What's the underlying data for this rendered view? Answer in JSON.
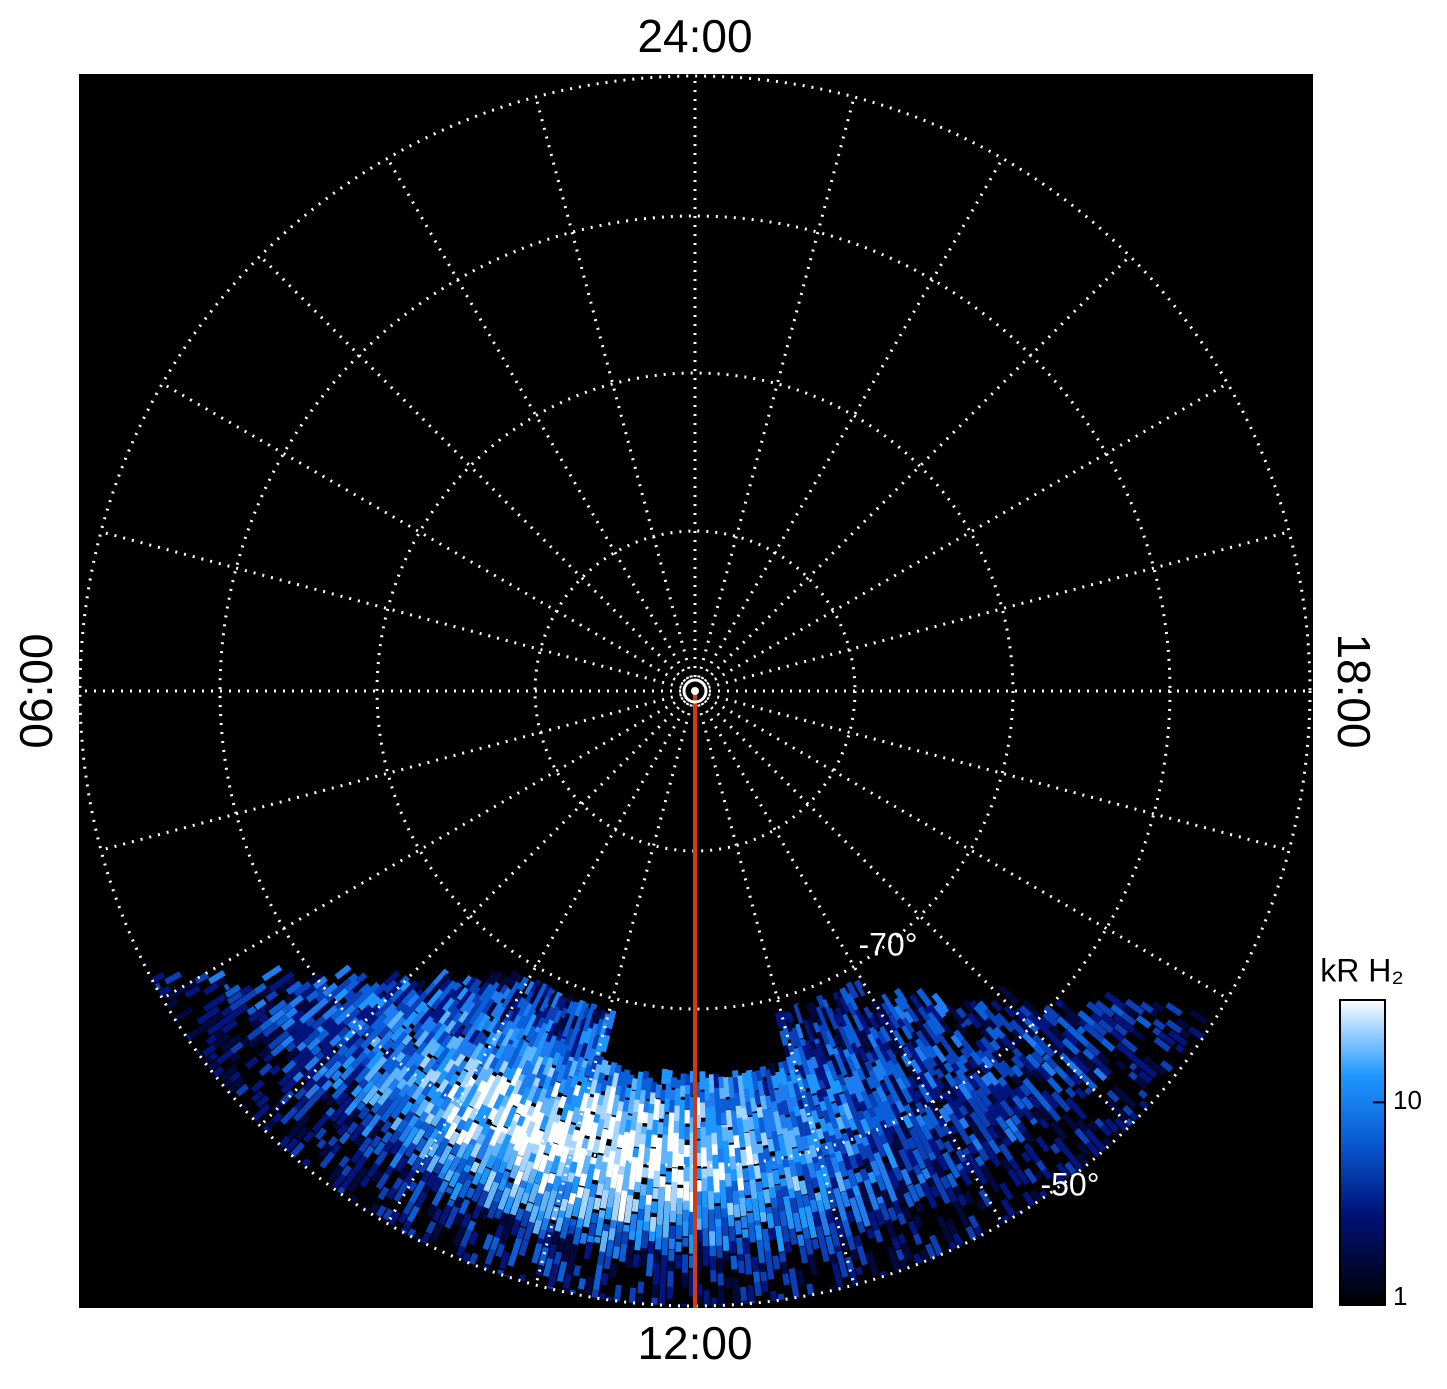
{
  "local_time_labels": {
    "top": "24:00",
    "bottom": "12:00",
    "left": "06:00",
    "right": "18:00"
  },
  "latitude_labels": [
    "-70°",
    "-50°"
  ],
  "colorbar": {
    "title": "kR H₂",
    "scale": "log",
    "lim": [
      1,
      32
    ],
    "ticks": [
      1,
      10
    ]
  }
}
